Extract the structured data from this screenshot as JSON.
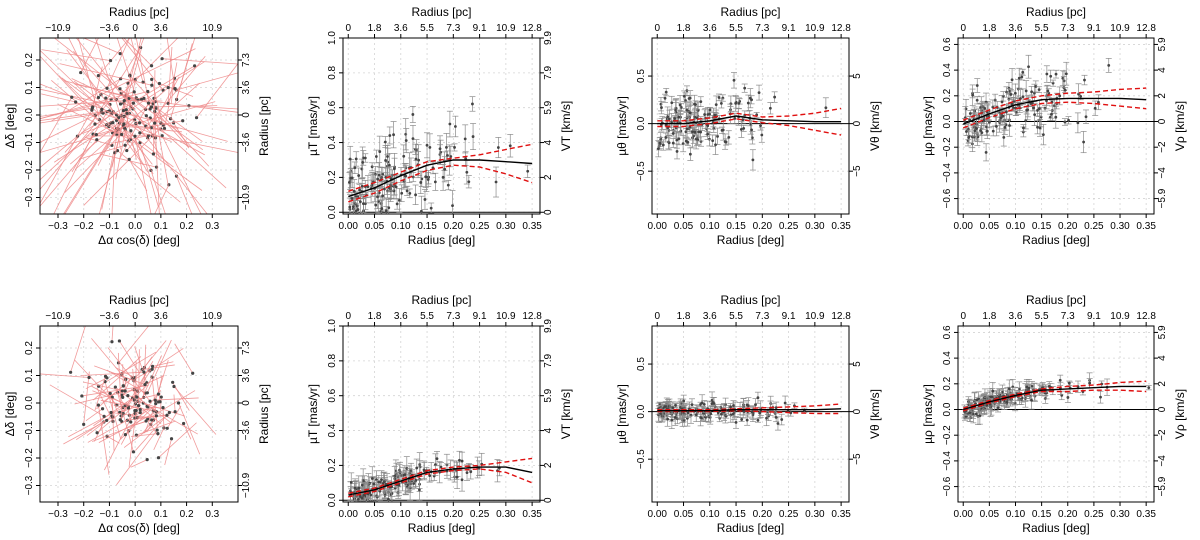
{
  "chart_data": [
    {
      "id": "vec-top",
      "type": "scatter",
      "kind": "vector",
      "xlabel": "Δα cos(δ) [deg]",
      "ylabel": "Δδ [deg]",
      "top_label": "Radius [pc]",
      "right_label": "Radius [pc]",
      "xlim": [
        -0.37,
        0.4
      ],
      "ylim": [
        -0.36,
        0.28
      ],
      "xticks": [
        -0.3,
        -0.2,
        -0.1,
        0.0,
        0.1,
        0.2,
        0.3
      ],
      "xtick_labels": [
        "−0.3",
        "−0.2",
        "−0.1",
        "0.0",
        "0.1",
        "0.2",
        "0.3"
      ],
      "yticks": [
        -0.3,
        -0.2,
        -0.1,
        0.0,
        0.1,
        0.2
      ],
      "ytick_labels": [
        "−0.3",
        "−0.2",
        "−0.1",
        "0.0",
        "0.1",
        "0.2"
      ],
      "top_ticks": [
        -0.3,
        -0.1,
        0.0,
        0.1,
        0.3
      ],
      "top_tick_labels": [
        "−10.9",
        "−3.6",
        "0",
        "3.6",
        "10.9"
      ],
      "right_ticks": [
        -0.3,
        -0.1,
        0.0,
        0.1,
        0.2
      ],
      "right_tick_labels": [
        "−10.9",
        "−3.6",
        "0",
        "3.6",
        "7.3"
      ],
      "seed": 11,
      "n_points": 140,
      "spread": 0.1,
      "arrow_len": 0.45
    },
    {
      "id": "mut-top",
      "type": "line",
      "kind": "profile",
      "xlabel": "Radius [deg]",
      "ylabel": "µT [mas/yr]",
      "top_label": "Radius [pc]",
      "right_label": "VT [km/s]",
      "xlim": [
        -0.01,
        0.365
      ],
      "ylim": [
        -0.01,
        1.0
      ],
      "xticks": [
        0.0,
        0.05,
        0.1,
        0.15,
        0.2,
        0.25,
        0.3,
        0.35
      ],
      "xtick_labels": [
        "0.00",
        "0.05",
        "0.10",
        "0.15",
        "0.20",
        "0.25",
        "0.30",
        "0.35"
      ],
      "yticks": [
        0.0,
        0.2,
        0.4,
        0.6,
        0.8,
        1.0
      ],
      "ytick_labels": [
        "0.0",
        "0.2",
        "0.4",
        "0.6",
        "0.8",
        "1.0"
      ],
      "top_ticks": [
        0.0,
        0.05,
        0.1,
        0.15,
        0.2,
        0.25,
        0.3,
        0.35
      ],
      "top_tick_labels": [
        "0",
        "1.8",
        "3.6",
        "5.5",
        "7.3",
        "9.1",
        "10.9",
        "12.8"
      ],
      "right_ticks": [
        0.0,
        0.2,
        0.4,
        0.6,
        0.8,
        1.0
      ],
      "right_tick_labels": [
        "0",
        "2",
        "4",
        "5.9",
        "7.9",
        "9.9"
      ],
      "fit": {
        "x": [
          0.0,
          0.05,
          0.1,
          0.15,
          0.2,
          0.25,
          0.3,
          0.35
        ],
        "y": [
          0.09,
          0.14,
          0.21,
          0.27,
          0.3,
          0.3,
          0.29,
          0.28
        ]
      },
      "ci_upper": {
        "x": [
          0.0,
          0.05,
          0.1,
          0.15,
          0.2,
          0.25,
          0.3,
          0.35
        ],
        "y": [
          0.12,
          0.17,
          0.23,
          0.29,
          0.31,
          0.33,
          0.36,
          0.39
        ]
      },
      "ci_lower": {
        "x": [
          0.0,
          0.05,
          0.1,
          0.15,
          0.2,
          0.25,
          0.3,
          0.35
        ],
        "y": [
          0.06,
          0.11,
          0.18,
          0.24,
          0.27,
          0.26,
          0.22,
          0.17
        ]
      },
      "zero_line": 0,
      "seed": 21,
      "n_points": 150,
      "noise": 0.13,
      "err": 0.05,
      "positive": true
    },
    {
      "id": "mutheta-top",
      "type": "line",
      "kind": "profile",
      "xlabel": "Radius [deg]",
      "ylabel": "µθ [mas/yr]",
      "top_label": "Radius [pc]",
      "right_label": "Vθ [km/s]",
      "xlim": [
        -0.01,
        0.365
      ],
      "ylim": [
        -0.95,
        0.9
      ],
      "xticks": [
        0.0,
        0.05,
        0.1,
        0.15,
        0.2,
        0.25,
        0.3,
        0.35
      ],
      "xtick_labels": [
        "0.00",
        "0.05",
        "0.10",
        "0.15",
        "0.20",
        "0.25",
        "0.30",
        "0.35"
      ],
      "yticks": [
        -0.5,
        0.0,
        0.5
      ],
      "ytick_labels": [
        "−0.5",
        "0.0",
        "0.5"
      ],
      "top_ticks": [
        0.0,
        0.05,
        0.1,
        0.15,
        0.2,
        0.25,
        0.3,
        0.35
      ],
      "top_tick_labels": [
        "0",
        "1.8",
        "3.6",
        "5.5",
        "7.3",
        "9.1",
        "10.9",
        "12.8"
      ],
      "right_ticks": [
        -0.5,
        0.0,
        0.5
      ],
      "right_tick_labels": [
        "−5",
        "0",
        "5"
      ],
      "fit": {
        "x": [
          0.0,
          0.05,
          0.1,
          0.15,
          0.2,
          0.25,
          0.3,
          0.35
        ],
        "y": [
          0.0,
          0.0,
          0.03,
          0.08,
          0.04,
          0.03,
          0.02,
          0.02
        ]
      },
      "ci_upper": {
        "x": [
          0.0,
          0.05,
          0.1,
          0.15,
          0.2,
          0.25,
          0.3,
          0.35
        ],
        "y": [
          0.03,
          0.03,
          0.06,
          0.11,
          0.07,
          0.08,
          0.11,
          0.16
        ]
      },
      "ci_lower": {
        "x": [
          0.0,
          0.05,
          0.1,
          0.15,
          0.2,
          0.25,
          0.3,
          0.35
        ],
        "y": [
          -0.03,
          -0.03,
          0.0,
          0.05,
          0.01,
          -0.02,
          -0.07,
          -0.12
        ]
      },
      "zero_line": 0,
      "seed": 31,
      "n_points": 150,
      "noise": 0.16,
      "err": 0.06,
      "positive": false
    },
    {
      "id": "murho-top",
      "type": "line",
      "kind": "profile",
      "xlabel": "Radius [deg]",
      "ylabel": "µρ [mas/yr]",
      "top_label": "Radius [pc]",
      "right_label": "Vρ [km/s]",
      "xlim": [
        -0.01,
        0.365
      ],
      "ylim": [
        -0.72,
        0.65
      ],
      "xticks": [
        0.0,
        0.05,
        0.1,
        0.15,
        0.2,
        0.25,
        0.3,
        0.35
      ],
      "xtick_labels": [
        "0.00",
        "0.05",
        "0.10",
        "0.15",
        "0.20",
        "0.25",
        "0.30",
        "0.35"
      ],
      "yticks": [
        -0.6,
        -0.4,
        -0.2,
        0.0,
        0.2,
        0.4,
        0.6
      ],
      "ytick_labels": [
        "−0.6",
        "−0.4",
        "−0.2",
        "0.0",
        "0.2",
        "0.4",
        "0.6"
      ],
      "top_ticks": [
        0.0,
        0.05,
        0.1,
        0.15,
        0.2,
        0.25,
        0.3,
        0.35
      ],
      "top_tick_labels": [
        "0",
        "1.8",
        "3.6",
        "5.5",
        "7.3",
        "9.1",
        "10.9",
        "12.8"
      ],
      "right_ticks": [
        -0.6,
        -0.4,
        -0.2,
        0.0,
        0.2,
        0.4,
        0.6
      ],
      "right_tick_labels": [
        "−5.9",
        "−4",
        "−2",
        "0",
        "2",
        "4",
        "5.9"
      ],
      "fit": {
        "x": [
          0.0,
          0.05,
          0.1,
          0.15,
          0.2,
          0.25,
          0.3,
          0.35
        ],
        "y": [
          -0.02,
          0.06,
          0.13,
          0.17,
          0.18,
          0.18,
          0.18,
          0.17
        ]
      },
      "ci_upper": {
        "x": [
          0.0,
          0.05,
          0.1,
          0.15,
          0.2,
          0.25,
          0.3,
          0.35
        ],
        "y": [
          0.01,
          0.09,
          0.16,
          0.2,
          0.22,
          0.23,
          0.25,
          0.26
        ]
      },
      "ci_lower": {
        "x": [
          0.0,
          0.05,
          0.1,
          0.15,
          0.2,
          0.25,
          0.3,
          0.35
        ],
        "y": [
          -0.05,
          0.03,
          0.1,
          0.14,
          0.15,
          0.14,
          0.12,
          0.1
        ]
      },
      "zero_line": 0,
      "seed": 41,
      "n_points": 160,
      "noise": 0.12,
      "err": 0.05,
      "positive": false
    },
    {
      "id": "vec-bot",
      "type": "scatter",
      "kind": "vector",
      "xlabel": "Δα cos(δ) [deg]",
      "ylabel": "Δδ [deg]",
      "top_label": "Radius [pc]",
      "right_label": "Radius [pc]",
      "xlim": [
        -0.37,
        0.4
      ],
      "ylim": [
        -0.36,
        0.28
      ],
      "xticks": [
        -0.3,
        -0.2,
        -0.1,
        0.0,
        0.1,
        0.2,
        0.3
      ],
      "xtick_labels": [
        "−0.3",
        "−0.2",
        "−0.1",
        "0.0",
        "0.1",
        "0.2",
        "0.3"
      ],
      "yticks": [
        -0.3,
        -0.2,
        -0.1,
        0.0,
        0.1,
        0.2
      ],
      "ytick_labels": [
        "−0.3",
        "−0.2",
        "−0.1",
        "0.0",
        "0.1",
        "0.2"
      ],
      "top_ticks": [
        -0.3,
        -0.1,
        0.0,
        0.1,
        0.3
      ],
      "top_tick_labels": [
        "−10.9",
        "−3.6",
        "0",
        "3.6",
        "10.9"
      ],
      "right_ticks": [
        -0.3,
        -0.1,
        0.0,
        0.1,
        0.2
      ],
      "right_tick_labels": [
        "−10.9",
        "−3.6",
        "0",
        "3.6",
        "7.3"
      ],
      "seed": 53,
      "n_points": 120,
      "spread": 0.1,
      "arrow_len": 0.22
    },
    {
      "id": "mut-bot",
      "type": "line",
      "kind": "profile",
      "xlabel": "Radius [deg]",
      "ylabel": "µT [mas/yr]",
      "top_label": "Radius [pc]",
      "right_label": "VT [km/s]",
      "xlim": [
        -0.01,
        0.365
      ],
      "ylim": [
        -0.01,
        1.0
      ],
      "xticks": [
        0.0,
        0.05,
        0.1,
        0.15,
        0.2,
        0.25,
        0.3,
        0.35
      ],
      "xtick_labels": [
        "0.00",
        "0.05",
        "0.10",
        "0.15",
        "0.20",
        "0.25",
        "0.30",
        "0.35"
      ],
      "yticks": [
        0.0,
        0.2,
        0.4,
        0.6,
        0.8,
        1.0
      ],
      "ytick_labels": [
        "0.0",
        "0.2",
        "0.4",
        "0.6",
        "0.8",
        "1.0"
      ],
      "top_ticks": [
        0.0,
        0.05,
        0.1,
        0.15,
        0.2,
        0.25,
        0.3,
        0.35
      ],
      "top_tick_labels": [
        "0",
        "1.8",
        "3.6",
        "5.5",
        "7.3",
        "9.1",
        "10.9",
        "12.8"
      ],
      "right_ticks": [
        0.0,
        0.2,
        0.4,
        0.6,
        0.8,
        1.0
      ],
      "right_tick_labels": [
        "0",
        "2",
        "4",
        "5.9",
        "7.9",
        "9.9"
      ],
      "fit": {
        "x": [
          0.0,
          0.05,
          0.1,
          0.15,
          0.2,
          0.25,
          0.3,
          0.35
        ],
        "y": [
          0.03,
          0.06,
          0.11,
          0.16,
          0.18,
          0.19,
          0.19,
          0.16
        ]
      },
      "ci_upper": {
        "x": [
          0.0,
          0.05,
          0.1,
          0.15,
          0.2,
          0.25,
          0.3,
          0.35
        ],
        "y": [
          0.04,
          0.07,
          0.12,
          0.17,
          0.19,
          0.2,
          0.22,
          0.24
        ]
      },
      "ci_lower": {
        "x": [
          0.0,
          0.05,
          0.1,
          0.15,
          0.2,
          0.25,
          0.3,
          0.35
        ],
        "y": [
          0.02,
          0.05,
          0.1,
          0.15,
          0.17,
          0.18,
          0.16,
          0.1
        ]
      },
      "zero_line": 0,
      "seed": 61,
      "n_points": 150,
      "noise": 0.035,
      "err": 0.04,
      "positive": true
    },
    {
      "id": "mutheta-bot",
      "type": "line",
      "kind": "profile",
      "xlabel": "Radius [deg]",
      "ylabel": "µθ [mas/yr]",
      "top_label": "Radius [pc]",
      "right_label": "Vθ [km/s]",
      "xlim": [
        -0.01,
        0.365
      ],
      "ylim": [
        -0.95,
        0.9
      ],
      "xticks": [
        0.0,
        0.05,
        0.1,
        0.15,
        0.2,
        0.25,
        0.3,
        0.35
      ],
      "xtick_labels": [
        "0.00",
        "0.05",
        "0.10",
        "0.15",
        "0.20",
        "0.25",
        "0.30",
        "0.35"
      ],
      "yticks": [
        -0.5,
        0.0,
        0.5
      ],
      "ytick_labels": [
        "−0.5",
        "0.0",
        "0.5"
      ],
      "top_ticks": [
        0.0,
        0.05,
        0.1,
        0.15,
        0.2,
        0.25,
        0.3,
        0.35
      ],
      "top_tick_labels": [
        "0",
        "1.8",
        "3.6",
        "5.5",
        "7.3",
        "9.1",
        "10.9",
        "12.8"
      ],
      "right_ticks": [
        -0.5,
        0.0,
        0.5
      ],
      "right_tick_labels": [
        "−5",
        "0",
        "5"
      ],
      "fit": {
        "x": [
          0.0,
          0.05,
          0.1,
          0.15,
          0.2,
          0.25,
          0.3,
          0.35
        ],
        "y": [
          0.01,
          0.01,
          0.01,
          0.02,
          0.02,
          0.02,
          0.02,
          0.03
        ]
      },
      "ci_upper": {
        "x": [
          0.0,
          0.05,
          0.1,
          0.15,
          0.2,
          0.25,
          0.3,
          0.35
        ],
        "y": [
          0.02,
          0.02,
          0.02,
          0.03,
          0.04,
          0.05,
          0.06,
          0.08
        ]
      },
      "ci_lower": {
        "x": [
          0.0,
          0.05,
          0.1,
          0.15,
          0.2,
          0.25,
          0.3,
          0.35
        ],
        "y": [
          0.0,
          0.0,
          0.0,
          0.01,
          0.0,
          -0.01,
          -0.02,
          -0.02
        ]
      },
      "zero_line": 0,
      "seed": 71,
      "n_points": 150,
      "noise": 0.05,
      "err": 0.05,
      "positive": false
    },
    {
      "id": "murho-bot",
      "type": "line",
      "kind": "profile",
      "xlabel": "Radius [deg]",
      "ylabel": "µρ [mas/yr]",
      "top_label": "Radius [pc]",
      "right_label": "Vρ [km/s]",
      "xlim": [
        -0.01,
        0.365
      ],
      "ylim": [
        -0.72,
        0.65
      ],
      "xticks": [
        0.0,
        0.05,
        0.1,
        0.15,
        0.2,
        0.25,
        0.3,
        0.35
      ],
      "xtick_labels": [
        "0.00",
        "0.05",
        "0.10",
        "0.15",
        "0.20",
        "0.25",
        "0.30",
        "0.35"
      ],
      "yticks": [
        -0.6,
        -0.4,
        -0.2,
        0.0,
        0.2,
        0.4,
        0.6
      ],
      "ytick_labels": [
        "−0.6",
        "−0.4",
        "−0.2",
        "0.0",
        "0.2",
        "0.4",
        "0.6"
      ],
      "top_ticks": [
        0.0,
        0.05,
        0.1,
        0.15,
        0.2,
        0.25,
        0.3,
        0.35
      ],
      "top_tick_labels": [
        "0",
        "1.8",
        "3.6",
        "5.5",
        "7.3",
        "9.1",
        "10.9",
        "12.8"
      ],
      "right_ticks": [
        -0.6,
        -0.4,
        -0.2,
        0.0,
        0.2,
        0.4,
        0.6
      ],
      "right_tick_labels": [
        "−5.9",
        "−4",
        "−2",
        "0",
        "2",
        "4",
        "5.9"
      ],
      "fit": {
        "x": [
          0.0,
          0.05,
          0.1,
          0.15,
          0.2,
          0.25,
          0.3,
          0.35
        ],
        "y": [
          0.0,
          0.06,
          0.11,
          0.15,
          0.16,
          0.17,
          0.18,
          0.18
        ]
      },
      "ci_upper": {
        "x": [
          0.0,
          0.05,
          0.1,
          0.15,
          0.2,
          0.25,
          0.3,
          0.35
        ],
        "y": [
          0.01,
          0.07,
          0.12,
          0.16,
          0.18,
          0.19,
          0.21,
          0.22
        ]
      },
      "ci_lower": {
        "x": [
          0.0,
          0.05,
          0.1,
          0.15,
          0.2,
          0.25,
          0.3,
          0.35
        ],
        "y": [
          -0.01,
          0.05,
          0.1,
          0.14,
          0.14,
          0.15,
          0.15,
          0.14
        ]
      },
      "zero_line": 0,
      "seed": 81,
      "n_points": 160,
      "noise": 0.035,
      "err": 0.04,
      "positive": false
    }
  ]
}
